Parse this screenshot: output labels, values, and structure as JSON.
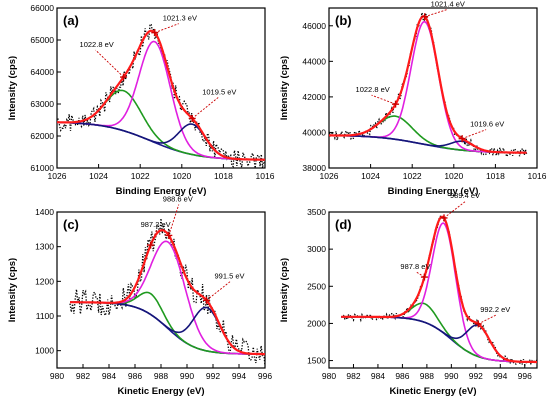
{
  "chart_data": [
    {
      "type": "line",
      "panel_label": "(a)",
      "xlabel": "Binding Energy (eV)",
      "ylabel": "Intensity (cps)",
      "xlim": [
        1026,
        1016
      ],
      "ylim": [
        61000,
        66000
      ],
      "x_ticks": [
        1026,
        1024,
        1022,
        1020,
        1018,
        1016
      ],
      "y_ticks": [
        61000,
        62000,
        63000,
        64000,
        65000,
        66000
      ],
      "x_tick_labels": [
        "1026",
        "1024",
        "1022",
        "1020",
        "1018",
        "1016"
      ],
      "y_tick_labels": [
        "61000",
        "62000",
        "63000",
        "64000",
        "65000",
        "66000"
      ],
      "background": {
        "x_start": 1026,
        "y_start": 62450,
        "x_end": 1016,
        "y_end": 61250,
        "step_center": 1021.5
      },
      "peaks": [
        {
          "center": 1022.8,
          "height": 1250,
          "sigma": 0.85,
          "color": "#1f9a1f"
        },
        {
          "center": 1021.3,
          "height": 3150,
          "sigma": 0.75,
          "color": "#e020e0"
        },
        {
          "center": 1019.5,
          "height": 950,
          "sigma": 0.65,
          "color": "#15157a"
        }
      ],
      "noise_amplitude": 280,
      "annotations": [
        {
          "text": "1022.8 eV",
          "x": 1022.8
        },
        {
          "text": "1021.3 eV",
          "x": 1021.3
        },
        {
          "text": "1019.5 eV",
          "x": 1019.5
        }
      ],
      "grid": false
    },
    {
      "type": "line",
      "panel_label": "(b)",
      "xlabel": "Binding Energy (eV)",
      "ylabel": "Intensity (cps)",
      "xlim": [
        1026,
        1016
      ],
      "ylim": [
        38000,
        47000
      ],
      "x_ticks": [
        1026,
        1024,
        1022,
        1020,
        1018,
        1016
      ],
      "y_ticks": [
        38000,
        40000,
        42000,
        44000,
        46000
      ],
      "x_tick_labels": [
        "1026",
        "1024",
        "1022",
        "1020",
        "1018",
        "1016"
      ],
      "y_tick_labels": [
        "38000",
        "40000",
        "42000",
        "44000",
        "46000"
      ],
      "background": {
        "x_start": 1026,
        "y_start": 39850,
        "x_end": 1016.5,
        "y_end": 38850,
        "step_center": 1021.5
      },
      "peaks": [
        {
          "center": 1022.8,
          "height": 1300,
          "sigma": 0.8,
          "color": "#1f9a1f"
        },
        {
          "center": 1021.4,
          "height": 6900,
          "sigma": 0.65,
          "color": "#e020e0"
        },
        {
          "center": 1019.6,
          "height": 500,
          "sigma": 0.55,
          "color": "#15157a"
        }
      ],
      "noise_amplitude": 260,
      "annotations": [
        {
          "text": "1022.8 eV",
          "x": 1022.8
        },
        {
          "text": "1021.4 eV",
          "x": 1021.4
        },
        {
          "text": "1019.6 eV",
          "x": 1019.6
        }
      ],
      "grid": false
    },
    {
      "type": "line",
      "panel_label": "(c)",
      "xlabel": "Kinetic Energy (eV)",
      "ylabel": "Intensity (cps)",
      "xlim": [
        980,
        996
      ],
      "ylim": [
        950,
        1400
      ],
      "x_ticks": [
        980,
        982,
        984,
        986,
        988,
        990,
        992,
        994,
        996
      ],
      "y_ticks": [
        1000,
        1100,
        1200,
        1300,
        1400
      ],
      "x_tick_labels": [
        "980",
        "982",
        "984",
        "986",
        "988",
        "990",
        "992",
        "994",
        "996"
      ],
      "y_tick_labels": [
        "1000",
        "1100",
        "1200",
        "1300",
        "1400"
      ],
      "background": {
        "x_start": 981,
        "y_start": 1140,
        "x_end": 996,
        "y_end": 990,
        "step_center": 988.5
      },
      "peaks": [
        {
          "center": 987.2,
          "height": 60,
          "sigma": 0.9,
          "color": "#1f9a1f"
        },
        {
          "center": 988.6,
          "height": 250,
          "sigma": 1.3,
          "color": "#e020e0"
        },
        {
          "center": 991.5,
          "height": 125,
          "sigma": 1.05,
          "color": "#15157a"
        }
      ],
      "noise_amplitude": 38,
      "annotations": [
        {
          "text": "988.6 eV",
          "x": 988.6
        },
        {
          "text": "987.2 eV",
          "x": 987.2
        },
        {
          "text": "991.5 eV",
          "x": 991.5
        }
      ],
      "grid": false
    },
    {
      "type": "line",
      "panel_label": "(d)",
      "xlabel": "Kinetic Energy (eV)",
      "ylabel": "Intensity (cps)",
      "xlim": [
        980,
        997
      ],
      "ylim": [
        1400,
        3500
      ],
      "x_ticks": [
        980,
        982,
        984,
        986,
        988,
        990,
        992,
        994,
        996
      ],
      "y_ticks": [
        1500,
        2000,
        2500,
        3000,
        3500
      ],
      "x_tick_labels": [
        "980",
        "982",
        "984",
        "986",
        "988",
        "990",
        "992",
        "994",
        "996"
      ],
      "y_tick_labels": [
        "1500",
        "2000",
        "2500",
        "3000",
        "3500"
      ],
      "background": {
        "x_start": 981,
        "y_start": 2090,
        "x_end": 997,
        "y_end": 1480,
        "step_center": 990
      },
      "peaks": [
        {
          "center": 987.8,
          "height": 250,
          "sigma": 1.0,
          "color": "#1f9a1f"
        },
        {
          "center": 989.4,
          "height": 1480,
          "sigma": 0.95,
          "color": "#e020e0"
        },
        {
          "center": 992.2,
          "height": 420,
          "sigma": 0.95,
          "color": "#15157a"
        }
      ],
      "noise_amplitude": 45,
      "annotations": [
        {
          "text": "989.4 eV",
          "x": 989.4
        },
        {
          "text": "987.8 eV",
          "x": 987.8
        },
        {
          "text": "992.2 eV",
          "x": 992.2
        }
      ],
      "grid": false
    }
  ],
  "colors": {
    "fit_envelope": "#ff1a1a",
    "data_points": "#000000",
    "annotation_marker": "#cc0000",
    "background_line": "#1a1a8c"
  }
}
